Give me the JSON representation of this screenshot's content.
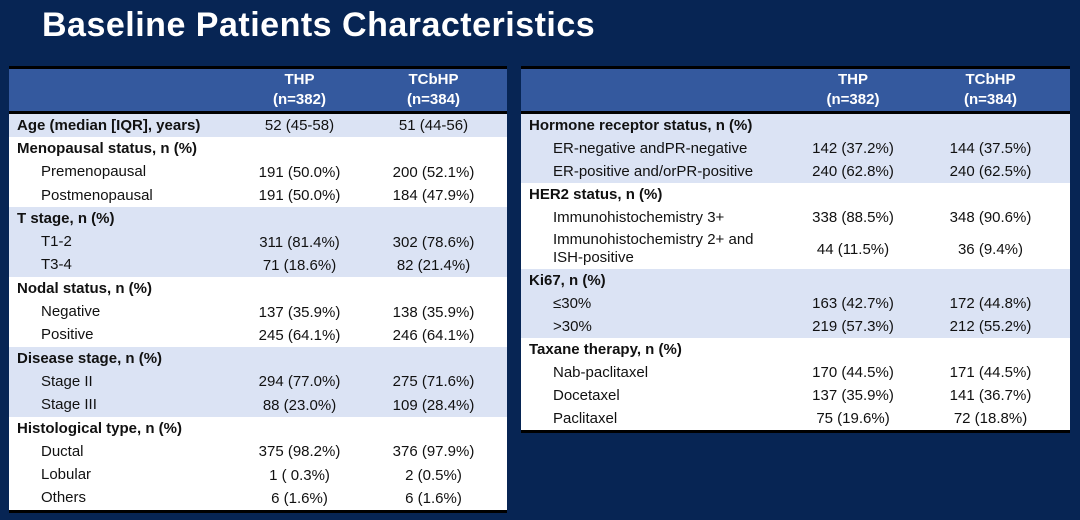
{
  "title": "Baseline Patients Characteristics",
  "colors": {
    "background": "#072554",
    "table_header_bg": "#34599e",
    "band_blue": "#dbe3f4",
    "band_white": "#ffffff",
    "border_color": "#000000",
    "title_color": "#ffffff",
    "header_text": "#ffffff",
    "body_text": "#111111"
  },
  "tables": [
    {
      "name": "left",
      "header": {
        "col1_name": "THP",
        "col1_n": "(n=382)",
        "col2_name": "TCbHP",
        "col2_n": "(n=384)"
      },
      "rows": [
        {
          "label": "Age (median [IQR], years)",
          "type": "group",
          "band": "blue",
          "thp": "52 (45-58)",
          "tcbhp": "51 (44-56)"
        },
        {
          "label": "Menopausal status, n (%)",
          "type": "group",
          "band": "white",
          "thp": "",
          "tcbhp": ""
        },
        {
          "label": "Premenopausal",
          "type": "item",
          "band": "white",
          "thp": "191 (50.0%)",
          "tcbhp": "200 (52.1%)"
        },
        {
          "label": "Postmenopausal",
          "type": "item",
          "band": "white",
          "thp": "191 (50.0%)",
          "tcbhp": "184 (47.9%)"
        },
        {
          "label": "T stage, n (%)",
          "type": "group",
          "band": "blue",
          "thp": "",
          "tcbhp": ""
        },
        {
          "label": "T1-2",
          "type": "item",
          "band": "blue",
          "thp": "311 (81.4%)",
          "tcbhp": "302 (78.6%)"
        },
        {
          "label": "T3-4",
          "type": "item",
          "band": "blue",
          "thp": "71 (18.6%)",
          "tcbhp": "82 (21.4%)"
        },
        {
          "label": "Nodal status, n (%)",
          "type": "group",
          "band": "white",
          "thp": "",
          "tcbhp": ""
        },
        {
          "label": "Negative",
          "type": "item",
          "band": "white",
          "thp": "137 (35.9%)",
          "tcbhp": "138 (35.9%)"
        },
        {
          "label": "Positive",
          "type": "item",
          "band": "white",
          "thp": "245 (64.1%)",
          "tcbhp": "246 (64.1%)"
        },
        {
          "label": "Disease stage, n (%)",
          "type": "group",
          "band": "blue",
          "thp": "",
          "tcbhp": ""
        },
        {
          "label": "Stage II",
          "type": "item",
          "band": "blue",
          "thp": "294 (77.0%)",
          "tcbhp": "275 (71.6%)"
        },
        {
          "label": "Stage III",
          "type": "item",
          "band": "blue",
          "thp": "88 (23.0%)",
          "tcbhp": "109 (28.4%)"
        },
        {
          "label": "Histological type, n (%)",
          "type": "group",
          "band": "white",
          "thp": "",
          "tcbhp": ""
        },
        {
          "label": "Ductal",
          "type": "item",
          "band": "white",
          "thp": "375 (98.2%)",
          "tcbhp": "376 (97.9%)"
        },
        {
          "label": "Lobular",
          "type": "item",
          "band": "white",
          "thp": "1 ( 0.3%)",
          "tcbhp": "2 (0.5%)"
        },
        {
          "label": "Others",
          "type": "item",
          "band": "white",
          "thp": "6 (1.6%)",
          "tcbhp": "6 (1.6%)"
        }
      ]
    },
    {
      "name": "right",
      "header": {
        "col1_name": "THP",
        "col1_n": "(n=382)",
        "col2_name": "TCbHP",
        "col2_n": "(n=384)"
      },
      "rows": [
        {
          "label": "Hormone receptor status, n (%)",
          "type": "group",
          "band": "blue",
          "thp": "",
          "tcbhp": ""
        },
        {
          "label": "ER-negative andPR-negative",
          "type": "item",
          "band": "blue",
          "thp": "142 (37.2%)",
          "tcbhp": "144 (37.5%)"
        },
        {
          "label": "ER-positive and/orPR-positive",
          "type": "item",
          "band": "blue",
          "thp": "240 (62.8%)",
          "tcbhp": "240 (62.5%)"
        },
        {
          "label": "HER2 status, n (%)",
          "type": "group",
          "band": "white",
          "thp": "",
          "tcbhp": ""
        },
        {
          "label": "Immunohistochemistry 3+",
          "type": "item",
          "band": "white",
          "thp": "338 (88.5%)",
          "tcbhp": "348 (90.6%)"
        },
        {
          "label": "Immunohistochemistry 2+ and ISH-positive",
          "type": "item",
          "band": "white",
          "thp": "44 (11.5%)",
          "tcbhp": "36 (9.4%)",
          "tall": true
        },
        {
          "label": "Ki67, n (%)",
          "type": "group",
          "band": "blue",
          "thp": "",
          "tcbhp": ""
        },
        {
          "label": "≤30%",
          "type": "item",
          "band": "blue",
          "thp": "163 (42.7%)",
          "tcbhp": "172 (44.8%)"
        },
        {
          "label": ">30%",
          "type": "item",
          "band": "blue",
          "thp": "219 (57.3%)",
          "tcbhp": "212 (55.2%)"
        },
        {
          "label": "Taxane therapy, n (%)",
          "type": "group",
          "band": "white",
          "thp": "",
          "tcbhp": ""
        },
        {
          "label": "Nab-paclitaxel",
          "type": "item",
          "band": "white",
          "thp": "170 (44.5%)",
          "tcbhp": "171 (44.5%)"
        },
        {
          "label": "Docetaxel",
          "type": "item",
          "band": "white",
          "thp": "137 (35.9%)",
          "tcbhp": "141 (36.7%)"
        },
        {
          "label": "Paclitaxel",
          "type": "item",
          "band": "white",
          "thp": "75 (19.6%)",
          "tcbhp": "72 (18.8%)"
        }
      ]
    }
  ]
}
